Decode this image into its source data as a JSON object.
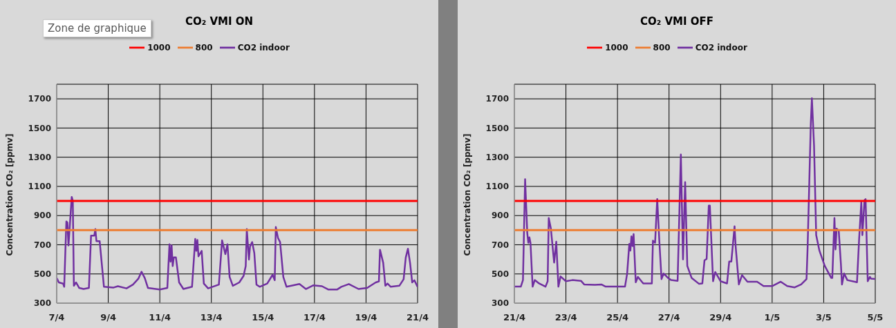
{
  "chart_data": [
    {
      "type": "line",
      "title": "CO₂ VMI ON",
      "ylabel": "Concentration  CO₂ [ppmv]",
      "legend": "top",
      "grid": true,
      "marker": "none",
      "line_style": "solid",
      "annotations": [
        "Zone de graphique"
      ],
      "xlim": [
        "--04-07",
        "--04-21"
      ],
      "xticks": [
        {
          "value": "--04-07",
          "label": "7/4"
        },
        {
          "value": "--04-09",
          "label": "9/4"
        },
        {
          "value": "--04-11",
          "label": "11/4"
        },
        {
          "value": "--04-13",
          "label": "13/4"
        },
        {
          "value": "--04-15",
          "label": "15/4"
        },
        {
          "value": "--04-17",
          "label": "17/4"
        },
        {
          "value": "--04-19",
          "label": "19/4"
        },
        {
          "value": "--04-21",
          "label": "21/4"
        }
      ],
      "ylim": [
        300,
        1800
      ],
      "yticks": [
        300,
        500,
        700,
        900,
        1100,
        1300,
        1500,
        1700
      ],
      "series": [
        {
          "name": "CO2 indoor",
          "color": "#7030a0",
          "x": [
            "--04-07T00:00",
            "--04-07T02:00",
            "--04-07T06:00",
            "--04-07T07:00",
            "--04-07T09:00",
            "--04-07T10:00",
            "--04-07T11:00",
            "--04-07T12:00",
            "--04-07T14:00",
            "--04-07T15:00",
            "--04-07T16:00",
            "--04-07T18:00",
            "--04-07T21:00",
            "--04-08T01:00",
            "--04-08T06:00",
            "--04-08T08:00",
            "--04-08T11:00",
            "--04-08T12:00",
            "--04-08T13:00",
            "--04-08T16:00",
            "--04-08T20:00",
            "--04-09T05:00",
            "--04-09T09:00",
            "--04-09T17:00",
            "--04-09T23:00",
            "--04-10T04:00",
            "--04-10T07:00",
            "--04-10T10:00",
            "--04-10T13:00",
            "--04-11T00:00",
            "--04-11T07:00",
            "--04-11T09:00",
            "--04-11T10:00",
            "--04-11T11:00",
            "--04-11T12:00",
            "--04-11T13:00",
            "--04-11T15:00",
            "--04-11T18:00",
            "--04-11T22:00",
            "--04-12T06:00",
            "--04-12T09:00",
            "--04-12T10:00",
            "--04-12T11:00",
            "--04-12T12:00",
            "--04-12T15:00",
            "--04-12T17:00",
            "--04-12T21:00",
            "--04-13T07:00",
            "--04-13T10:00",
            "--04-13T13:00",
            "--04-13T15:00",
            "--04-13T17:00",
            "--04-13T20:00",
            "--04-14T02:00",
            "--04-14T06:00",
            "--04-14T08:00",
            "--04-14T09:00",
            "--04-14T11:00",
            "--04-14T12:00",
            "--04-14T14:00",
            "--04-14T16:00",
            "--04-14T18:00",
            "--04-14T21:00",
            "--04-15T04:00",
            "--04-15T09:00",
            "--04-15T11:00",
            "--04-15T12:00",
            "--04-15T14:00",
            "--04-15T16:00",
            "--04-15T19:00",
            "--04-15T22:00",
            "--04-16T10:00",
            "--04-16T16:00",
            "--04-16T23:00",
            "--04-17T07:00",
            "--04-17T13:00",
            "--04-17T21:00",
            "--04-18T01:00",
            "--04-18T08:00",
            "--04-18T17:00",
            "--04-19T01:00",
            "--04-19T09:00",
            "--04-19T12:00",
            "--04-19T13:00",
            "--04-19T16:00",
            "--04-19T18:00",
            "--04-19T20:00",
            "--04-19T23:00",
            "--04-20T07:00",
            "--04-20T11:00",
            "--04-20T13:00",
            "--04-20T15:00",
            "--04-20T17:00",
            "--04-20T19:00",
            "--04-20T21:00",
            "--04-21T00:00"
          ],
          "values": [
            472,
            442,
            434,
            412,
            860,
            852,
            695,
            807,
            1028,
            1001,
            419,
            442,
            404,
            397,
            404,
            763,
            763,
            807,
            725,
            725,
            412,
            407,
            416,
            401,
            427,
            467,
            515,
            472,
            404,
            393,
            404,
            703,
            584,
            695,
            554,
            613,
            613,
            442,
            397,
            412,
            740,
            658,
            733,
            621,
            658,
            434,
            401,
            427,
            730,
            636,
            703,
            479,
            419,
            442,
            487,
            554,
            807,
            598,
            688,
            718,
            643,
            427,
            412,
            434,
            494,
            457,
            822,
            747,
            718,
            479,
            412,
            431,
            397,
            422,
            416,
            393,
            393,
            412,
            431,
            397,
            404,
            442,
            449,
            666,
            576,
            419,
            434,
            412,
            419,
            464,
            613,
            673,
            576,
            442,
            457,
            412
          ]
        },
        {
          "name": "800",
          "color": "#ed7d31",
          "x": [
            "--04-07",
            "--04-21"
          ],
          "values": [
            800,
            800
          ]
        },
        {
          "name": "1000",
          "color": "#ff0000",
          "x": [
            "--04-07",
            "--04-21"
          ],
          "values": [
            1000,
            1000
          ]
        }
      ]
    },
    {
      "type": "line",
      "title": "CO₂ VMI OFF",
      "ylabel": "Concentration CO₂ [ppmv]",
      "legend": "top",
      "grid": true,
      "marker": "none",
      "line_style": "solid",
      "xlim": [
        "--04-21",
        "--05-05"
      ],
      "xticks": [
        {
          "value": "--04-21",
          "label": "21/4"
        },
        {
          "value": "--04-23",
          "label": "23/4"
        },
        {
          "value": "--04-25",
          "label": "25/4"
        },
        {
          "value": "--04-27",
          "label": "27/4"
        },
        {
          "value": "--04-29",
          "label": "29/4"
        },
        {
          "value": "--05-01",
          "label": "1/5"
        },
        {
          "value": "--05-03",
          "label": "3/5"
        },
        {
          "value": "--05-05",
          "label": "5/5"
        }
      ],
      "ylim": [
        300,
        1800
      ],
      "yticks": [
        300,
        500,
        700,
        900,
        1100,
        1300,
        1500,
        1700
      ],
      "series": [
        {
          "name": "CO2 indoor",
          "color": "#7030a0",
          "x": [
            "--04-21T00:00",
            "--04-21T06:00",
            "--04-21T08:00",
            "--04-21T10:00",
            "--04-21T12:00",
            "--04-21T13:00",
            "--04-21T14:00",
            "--04-21T15:00",
            "--04-21T17:00",
            "--04-21T19:00",
            "--04-21T23:00",
            "--04-22T05:00",
            "--04-22T07:00",
            "--04-22T08:00",
            "--04-22T10:00",
            "--04-22T13:00",
            "--04-22T15:00",
            "--04-22T17:00",
            "--04-22T19:00",
            "--04-23T00:00",
            "--04-23T06:00",
            "--04-23T14:00",
            "--04-23T17:00",
            "--04-24T03:00",
            "--04-24T09:00",
            "--04-24T13:00",
            "--04-25T07:00",
            "--04-25T09:00",
            "--04-25T11:00",
            "--04-25T12:00",
            "--04-25T13:00",
            "--04-25T14:00",
            "--04-25T15:00",
            "--04-25T17:00",
            "--04-25T19:00",
            "--04-26T00:00",
            "--04-26T08:00",
            "--04-26T09:00",
            "--04-26T11:00",
            "--04-26T13:00",
            "--04-26T15:00",
            "--04-26T17:00",
            "--04-26T19:00",
            "--04-26T23:00",
            "--04-27T02:00",
            "--04-27T08:00",
            "--04-27T11:00",
            "--04-27T13:00",
            "--04-27T15:00",
            "--04-27T17:00",
            "--04-27T21:00",
            "--04-28T04:00",
            "--04-28T07:00",
            "--04-28T09:00",
            "--04-28T11:00",
            "--04-28T13:00",
            "--04-28T14:00",
            "--04-28T17:00",
            "--04-28T19:00",
            "--04-29T00:00",
            "--04-29T06:00",
            "--04-29T08:00",
            "--04-29T10:00",
            "--04-29T13:00",
            "--04-29T14:00",
            "--04-29T17:00",
            "--04-29T20:00",
            "--04-30T01:00",
            "--04-30T10:00",
            "--04-30T16:00",
            "--05-01T00:00",
            "--05-01T08:00",
            "--05-01T14:00",
            "--05-01T21:00",
            "--05-02T03:00",
            "--05-02T08:00",
            "--05-02T09:00",
            "--05-02T12:00",
            "--05-02T13:00",
            "--05-02T15:00",
            "--05-02T17:00",
            "--05-02T20:00",
            "--05-03T01:00",
            "--05-03T07:00",
            "--05-03T08:00",
            "--05-03T10:00",
            "--05-03T11:00",
            "--05-03T12:00",
            "--05-03T14:00",
            "--05-03T16:00",
            "--05-03T17:00",
            "--05-03T19:00",
            "--05-03T22:00",
            "--05-04T07:00",
            "--05-04T09:00",
            "--05-04T11:00",
            "--05-04T12:00",
            "--05-04T14:00",
            "--05-04T15:00",
            "--05-04T17:00",
            "--05-04T19:00",
            "--05-04T20:00",
            "--05-05T00:00"
          ],
          "values": [
            413,
            413,
            458,
            1149,
            781,
            713,
            751,
            713,
            413,
            458,
            435,
            413,
            450,
            883,
            811,
            578,
            721,
            413,
            483,
            450,
            458,
            453,
            428,
            425,
            428,
            413,
            413,
            503,
            706,
            660,
            758,
            691,
            773,
            443,
            480,
            435,
            435,
            728,
            713,
            1013,
            721,
            465,
            503,
            473,
            458,
            453,
            1318,
            600,
            1129,
            555,
            473,
            432,
            435,
            593,
            603,
            968,
            968,
            450,
            513,
            450,
            435,
            585,
            585,
            826,
            691,
            428,
            492,
            447,
            447,
            417,
            417,
            447,
            417,
            408,
            428,
            465,
            676,
            1532,
            1704,
            1381,
            766,
            660,
            555,
            473,
            473,
            883,
            668,
            811,
            796,
            570,
            428,
            503,
            458,
            443,
            743,
            991,
            766,
            1006,
            1013,
            450,
            480,
            468,
            465
          ]
        },
        {
          "name": "800",
          "color": "#ed7d31",
          "x": [
            "--04-21",
            "--05-05"
          ],
          "values": [
            800,
            800
          ]
        },
        {
          "name": "1000",
          "color": "#ff0000",
          "x": [
            "--04-21",
            "--05-05"
          ],
          "values": [
            1000,
            1000
          ]
        }
      ]
    }
  ]
}
